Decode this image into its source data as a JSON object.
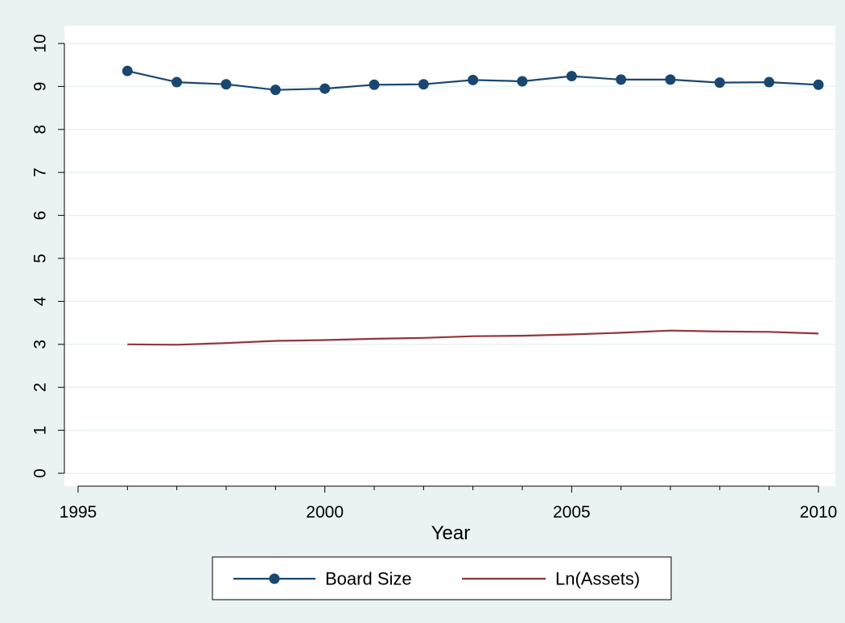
{
  "chart_data": {
    "type": "line",
    "title": "",
    "xlabel": "Year",
    "ylabel": "",
    "xlim": [
      1995,
      2010
    ],
    "ylim": [
      0,
      10
    ],
    "xticks": [
      1995,
      2000,
      2005,
      2010
    ],
    "xminor": [
      1996,
      1997,
      1998,
      1999,
      2001,
      2002,
      2003,
      2004,
      2006,
      2007,
      2008,
      2009
    ],
    "yticks": [
      0,
      1,
      2,
      3,
      4,
      5,
      6,
      7,
      8,
      9,
      10
    ],
    "grid": true,
    "legend_position": "bottom",
    "x": [
      1996,
      1997,
      1998,
      1999,
      2000,
      2001,
      2002,
      2003,
      2004,
      2005,
      2006,
      2007,
      2008,
      2009,
      2010
    ],
    "series": [
      {
        "name": "Board Size",
        "color": "#1a476f",
        "marker": "circle",
        "values": [
          9.36,
          9.1,
          9.05,
          8.92,
          8.95,
          9.04,
          9.05,
          9.15,
          9.12,
          9.24,
          9.16,
          9.16,
          9.09,
          9.1,
          9.04
        ]
      },
      {
        "name": "Ln(Assets)",
        "color": "#90353b",
        "marker": "none",
        "values": [
          3.0,
          2.99,
          3.03,
          3.08,
          3.1,
          3.13,
          3.15,
          3.19,
          3.2,
          3.23,
          3.27,
          3.32,
          3.3,
          3.29,
          3.25
        ]
      }
    ]
  },
  "colors": {
    "background": "#eaf2f3",
    "plot_background": "#ffffff",
    "grid": "#eaf2f3"
  }
}
